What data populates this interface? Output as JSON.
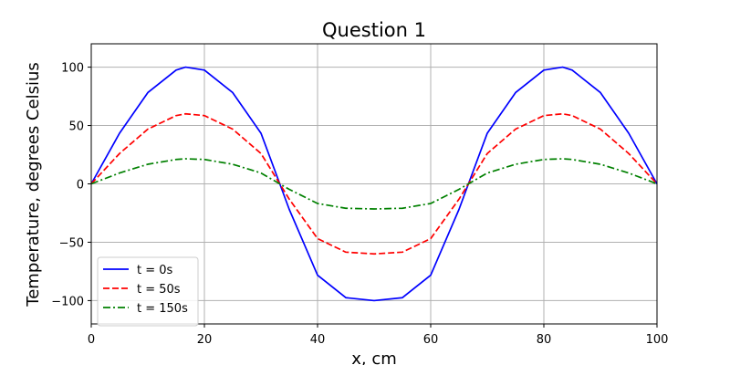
{
  "chart_data": {
    "type": "line",
    "title": "Question 1",
    "xlabel": "x, cm",
    "ylabel": "Temperature, degrees Celsius",
    "xlim": [
      0,
      100
    ],
    "ylim": [
      -120,
      120
    ],
    "xticks": [
      0,
      20,
      40,
      60,
      80,
      100
    ],
    "yticks": [
      -100,
      -50,
      0,
      50,
      100
    ],
    "xtick_labels": [
      "0",
      "20",
      "40",
      "60",
      "80",
      "100"
    ],
    "ytick_labels": [
      "−100",
      "−50",
      "0",
      "50",
      "100"
    ],
    "grid": true,
    "legend_position": "lower-left",
    "series": [
      {
        "name": "t = 0s",
        "color": "#0000ff",
        "dash": "solid",
        "x": [
          0,
          5,
          10,
          15,
          16.67,
          20,
          25,
          30,
          33.33,
          35,
          40,
          45,
          50,
          55,
          60,
          65,
          66.67,
          70,
          75,
          80,
          83.33,
          85,
          90,
          95,
          100
        ],
        "y": [
          0,
          43.4,
          78.2,
          97.5,
          100,
          97.5,
          78.2,
          43.4,
          0,
          -21.9,
          -78.2,
          -97.5,
          -100,
          -97.5,
          -78.2,
          -21.9,
          0,
          43.4,
          78.2,
          97.5,
          100,
          97.5,
          78.2,
          43.4,
          0
        ]
      },
      {
        "name": "t = 50s",
        "color": "#ff0000",
        "dash": "dashed",
        "x": [
          0,
          5,
          10,
          15,
          16.67,
          20,
          25,
          30,
          33.33,
          35,
          40,
          45,
          50,
          55,
          60,
          65,
          66.67,
          70,
          75,
          80,
          83.33,
          85,
          90,
          95,
          100
        ],
        "y": [
          0,
          26,
          46.9,
          58.5,
          60,
          58.5,
          46.9,
          26,
          0,
          -13.1,
          -46.9,
          -58.5,
          -60,
          -58.5,
          -46.9,
          -13.1,
          0,
          26,
          46.9,
          58.5,
          60,
          58.5,
          46.9,
          26,
          0
        ]
      },
      {
        "name": "t = 150s",
        "color": "#008000",
        "dash": "dashdot",
        "x": [
          0,
          5,
          10,
          15,
          16.67,
          20,
          25,
          30,
          33.33,
          35,
          40,
          45,
          50,
          55,
          60,
          65,
          66.67,
          70,
          75,
          80,
          83.33,
          85,
          90,
          95,
          100
        ],
        "y": [
          0,
          9.3,
          16.8,
          20.9,
          21.5,
          20.9,
          16.8,
          9.3,
          0,
          -4.7,
          -16.8,
          -20.9,
          -21.5,
          -20.9,
          -16.8,
          -4.7,
          0,
          9.3,
          16.8,
          20.9,
          21.5,
          20.9,
          16.8,
          9.3,
          0
        ]
      }
    ]
  }
}
